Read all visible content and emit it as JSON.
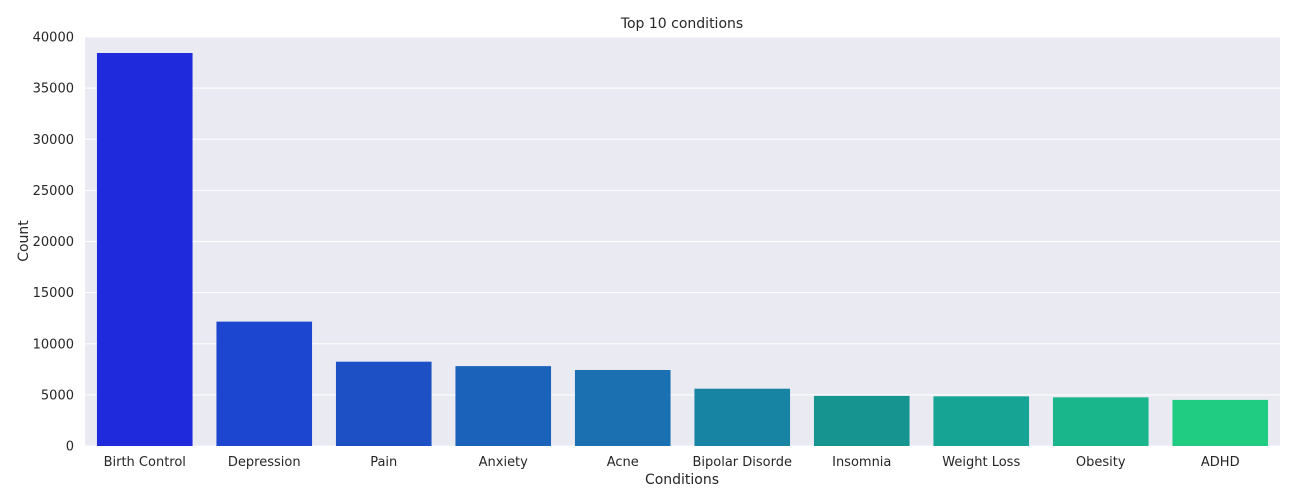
{
  "chart_data": {
    "type": "bar",
    "title": "Top 10 conditions",
    "xlabel": "Conditions",
    "ylabel": "Count",
    "categories": [
      "Birth Control",
      "Depression",
      "Pain",
      "Anxiety",
      "Acne",
      "Bipolar Disorde",
      "Insomnia",
      "Weight Loss",
      "Obesity",
      "ADHD"
    ],
    "values": [
      38436,
      12164,
      8245,
      7812,
      7435,
      5604,
      4904,
      4857,
      4757,
      4509
    ],
    "ylim": [
      0,
      40000
    ],
    "yticks": [
      0,
      5000,
      10000,
      15000,
      20000,
      25000,
      30000,
      35000,
      40000
    ],
    "grid": true,
    "bar_colors": [
      "#1e2adc",
      "#1d46d0",
      "#1c50c4",
      "#1b62bb",
      "#1a70b0",
      "#1784a4",
      "#159490",
      "#16a494",
      "#18b68a",
      "#1fcc82"
    ]
  }
}
